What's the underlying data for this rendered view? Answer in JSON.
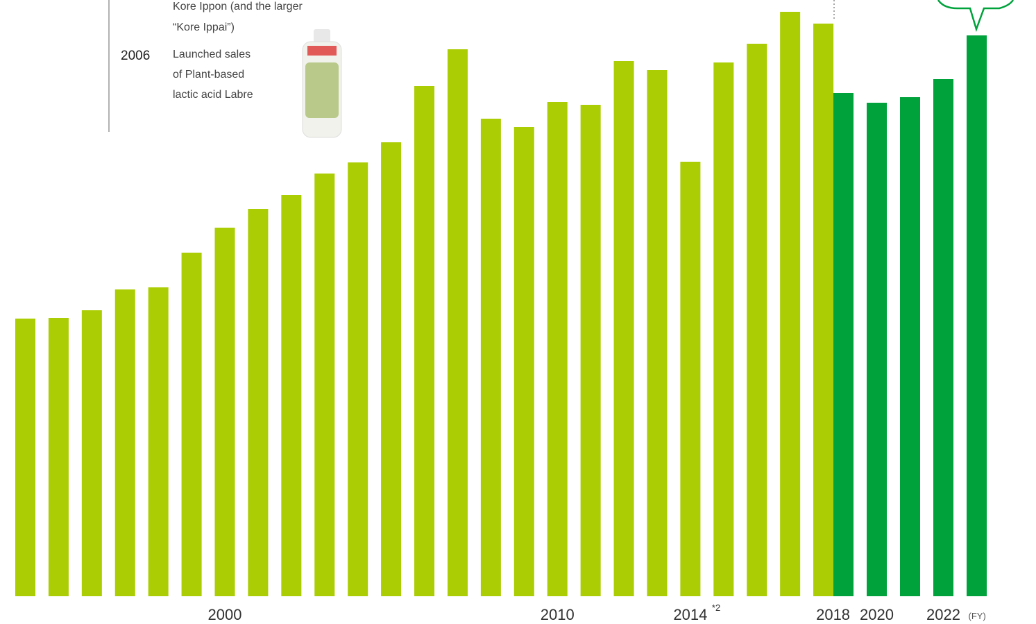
{
  "chart_data": {
    "type": "bar",
    "categories": [
      null,
      null,
      null,
      null,
      null,
      null,
      "2000",
      null,
      null,
      null,
      null,
      null,
      null,
      null,
      null,
      null,
      "2010",
      null,
      null,
      null,
      "2014",
      null,
      null,
      null,
      "2018",
      null,
      "2020",
      null,
      "2022",
      null
    ],
    "series": [
      {
        "color": "#abcd03",
        "values": [
          400,
          401,
          412,
          442,
          445,
          495,
          531,
          558,
          578,
          609,
          625,
          654,
          735,
          788,
          688,
          676,
          712,
          708,
          771,
          758,
          626,
          769,
          796,
          842,
          825,
          null,
          null,
          null,
          null,
          null
        ]
      },
      {
        "color": "#00a23c",
        "values": [
          null,
          null,
          null,
          null,
          null,
          null,
          null,
          null,
          null,
          null,
          null,
          null,
          null,
          null,
          null,
          null,
          null,
          null,
          null,
          null,
          null,
          null,
          null,
          null,
          null,
          725,
          711,
          719,
          745,
          808
        ]
      }
    ],
    "ylim": [
      0,
      860
    ],
    "footnote_mark": "*2",
    "x_unit": "(FY)",
    "annotations": {
      "line1": "Kore Ippon (and the larger",
      "line2": "“Kore Ippai”)",
      "year": "2006",
      "text1": "Launched sales",
      "text2": "of Plant-based",
      "text3": "lactic acid Labre"
    }
  }
}
